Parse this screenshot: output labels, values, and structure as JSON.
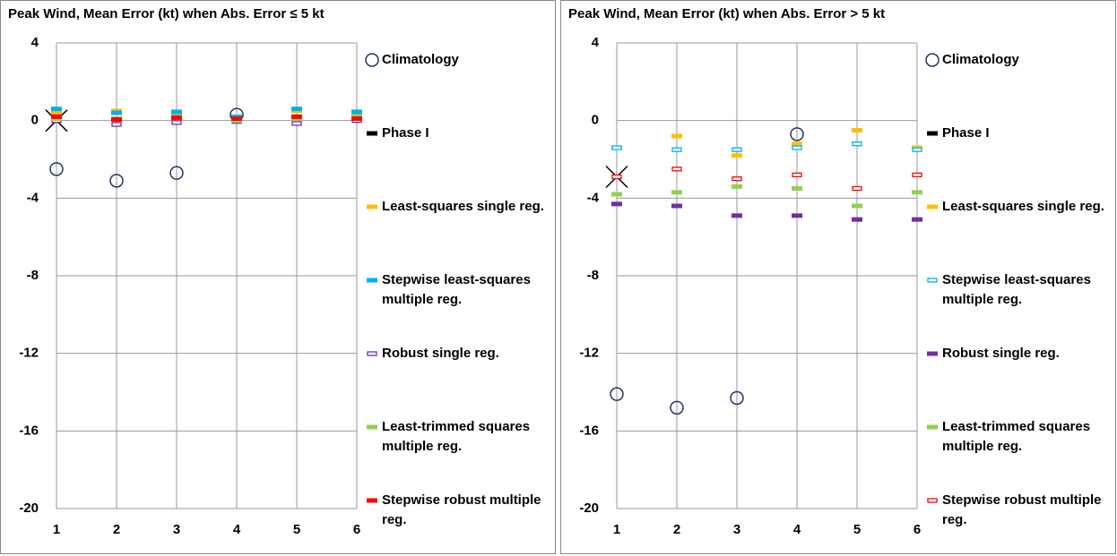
{
  "chart_data": [
    {
      "type": "scatter",
      "title": "Peak Wind, Mean Error (kt) when Abs. Error ≤ 5 kt",
      "x": [
        1,
        2,
        3,
        4,
        5,
        6
      ],
      "xlim": [
        1,
        6
      ],
      "xticks": [
        1,
        2,
        3,
        4,
        5,
        6
      ],
      "ylim": [
        -20,
        4
      ],
      "yticks": [
        4,
        0,
        -4,
        -8,
        -12,
        -16,
        -20
      ],
      "grid": true,
      "series": [
        {
          "name": "Climatology",
          "color": "#1f3864",
          "marker": "circle",
          "values": [
            -2.5,
            -3.1,
            -2.7,
            0.3,
            null,
            null
          ]
        },
        {
          "name": "Phase I",
          "color": "#000000",
          "marker": "x",
          "values": [
            0,
            null,
            null,
            null,
            null,
            null
          ]
        },
        {
          "name": "Least-squares single reg.",
          "color": "#ffc000",
          "marker": "dash",
          "values": [
            0.4,
            0.5,
            0.3,
            0.1,
            0.5,
            0.3
          ]
        },
        {
          "name": "Stepwise least-squares multiple reg.",
          "color": "#00b0f0",
          "marker": "dash",
          "values": [
            0.6,
            0.4,
            0.45,
            0.2,
            0.6,
            0.45
          ]
        },
        {
          "name": "Robust single reg.",
          "color": "#7030a0",
          "marker": "hollow-dash",
          "values": [
            0,
            -0.2,
            -0.1,
            -0.05,
            -0.15,
            0
          ]
        },
        {
          "name": "Least-trimmed squares multiple reg.",
          "color": "#92d050",
          "marker": "dash",
          "values": [
            0.1,
            0.1,
            0.2,
            0,
            0.1,
            0.2
          ]
        },
        {
          "name": "Stepwise robust multiple reg.",
          "color": "#ff0000",
          "marker": "dash",
          "values": [
            0.2,
            0.05,
            0.15,
            0.1,
            0.2,
            0.1
          ]
        }
      ]
    },
    {
      "type": "scatter",
      "title": "Peak Wind, Mean Error (kt) when Abs. Error > 5 kt",
      "x": [
        1,
        2,
        3,
        4,
        5,
        6
      ],
      "xlim": [
        1,
        6
      ],
      "xticks": [
        1,
        2,
        3,
        4,
        5,
        6
      ],
      "ylim": [
        -20,
        4
      ],
      "yticks": [
        4,
        0,
        -4,
        -8,
        -12,
        -16,
        -20
      ],
      "grid": true,
      "series": [
        {
          "name": "Climatology",
          "color": "#1f3864",
          "marker": "circle",
          "values": [
            -14.1,
            -14.8,
            -14.3,
            -0.7,
            null,
            null
          ]
        },
        {
          "name": "Phase I",
          "color": "#000000",
          "marker": "x",
          "values": [
            -2.9,
            null,
            null,
            null,
            null,
            null
          ]
        },
        {
          "name": "Least-squares single reg.",
          "color": "#ffc000",
          "marker": "dash",
          "values": [
            -1.4,
            -0.8,
            -1.8,
            -1.2,
            -0.5,
            -1.4
          ]
        },
        {
          "name": "Stepwise least-squares multiple reg.",
          "color": "#00b0f0",
          "marker": "hollow-dash",
          "values": [
            -1.4,
            -1.5,
            -1.5,
            -1.4,
            -1.2,
            -1.5
          ]
        },
        {
          "name": "Robust single reg.",
          "color": "#7030a0",
          "marker": "dash",
          "values": [
            -4.3,
            -4.4,
            -4.9,
            -4.9,
            -5.1,
            -5.1
          ]
        },
        {
          "name": "Least-trimmed squares multiple reg.",
          "color": "#92d050",
          "marker": "dash",
          "values": [
            -3.8,
            -3.7,
            -3.4,
            -3.5,
            -4.4,
            -3.7
          ]
        },
        {
          "name": "Stepwise robust multiple reg.",
          "color": "#ff0000",
          "marker": "hollow-dash",
          "values": [
            -2.9,
            -2.5,
            -3.0,
            -2.8,
            -3.5,
            -2.8
          ]
        }
      ]
    }
  ]
}
